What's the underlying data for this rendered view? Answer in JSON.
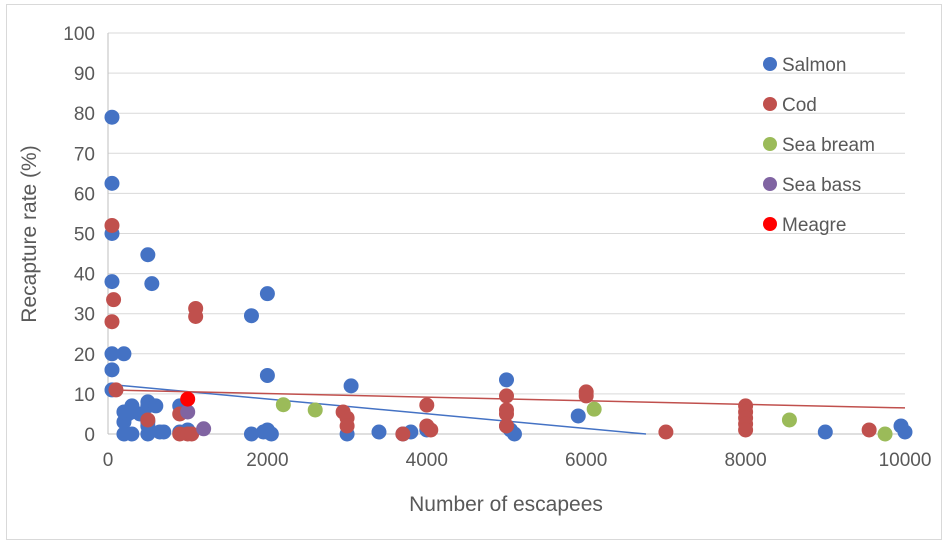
{
  "chart_data": {
    "type": "scatter",
    "xlabel": "Number of escapees",
    "ylabel": "Recapture rate (%)",
    "xlim": [
      0,
      10000
    ],
    "ylim": [
      0,
      100
    ],
    "x_ticks": [
      "0",
      "2000",
      "4000",
      "6000",
      "8000",
      "10000"
    ],
    "y_ticks": [
      "0",
      "10",
      "20",
      "30",
      "40",
      "50",
      "60",
      "70",
      "80",
      "90",
      "100"
    ],
    "grid": "horizontal",
    "legend_position": "right",
    "series": [
      {
        "name": "Salmon",
        "color": "#4472c4",
        "points": [
          [
            50,
            79
          ],
          [
            50,
            62.5
          ],
          [
            50,
            50
          ],
          [
            50,
            38
          ],
          [
            50,
            20
          ],
          [
            50,
            16
          ],
          [
            50,
            11
          ],
          [
            200,
            20
          ],
          [
            200,
            5.5
          ],
          [
            200,
            3
          ],
          [
            200,
            0
          ],
          [
            250,
            5
          ],
          [
            300,
            7
          ],
          [
            300,
            5.5
          ],
          [
            300,
            0
          ],
          [
            400,
            5
          ],
          [
            500,
            44.7
          ],
          [
            500,
            8
          ],
          [
            500,
            7
          ],
          [
            500,
            3
          ],
          [
            500,
            2
          ],
          [
            500,
            0
          ],
          [
            550,
            37.5
          ],
          [
            600,
            7
          ],
          [
            650,
            0.5
          ],
          [
            700,
            0.5
          ],
          [
            900,
            7
          ],
          [
            900,
            0.5
          ],
          [
            1000,
            1
          ],
          [
            1800,
            29.5
          ],
          [
            1800,
            0
          ],
          [
            1950,
            0.5
          ],
          [
            2000,
            35
          ],
          [
            2000,
            14.6
          ],
          [
            2000,
            1
          ],
          [
            2000,
            0.5
          ],
          [
            2050,
            0
          ],
          [
            3000,
            0
          ],
          [
            3050,
            12
          ],
          [
            3400,
            0.5
          ],
          [
            3700,
            0
          ],
          [
            3800,
            0.5
          ],
          [
            4000,
            1
          ],
          [
            5000,
            13.5
          ],
          [
            5000,
            2
          ],
          [
            5050,
            1
          ],
          [
            5100,
            0
          ],
          [
            5900,
            4.5
          ],
          [
            9000,
            0.5
          ],
          [
            9950,
            2
          ],
          [
            10000,
            0.5
          ]
        ]
      },
      {
        "name": "Cod",
        "color": "#c0504d",
        "points": [
          [
            50,
            52
          ],
          [
            50,
            28
          ],
          [
            70,
            33.5
          ],
          [
            100,
            11
          ],
          [
            500,
            3.5
          ],
          [
            900,
            5
          ],
          [
            900,
            0
          ],
          [
            1000,
            0
          ],
          [
            1050,
            0
          ],
          [
            1100,
            31.3
          ],
          [
            1100,
            29.3
          ],
          [
            2950,
            5.5
          ],
          [
            3000,
            4
          ],
          [
            3000,
            2
          ],
          [
            3700,
            0
          ],
          [
            4000,
            7.2
          ],
          [
            4000,
            2
          ],
          [
            4050,
            1
          ],
          [
            5000,
            9.5
          ],
          [
            5000,
            6
          ],
          [
            5000,
            5
          ],
          [
            5000,
            2
          ],
          [
            6000,
            10.5
          ],
          [
            6000,
            9.5
          ],
          [
            7000,
            0.5
          ],
          [
            8000,
            7
          ],
          [
            8000,
            5.5
          ],
          [
            8000,
            4
          ],
          [
            8000,
            2.5
          ],
          [
            8000,
            1
          ],
          [
            9550,
            1
          ]
        ]
      },
      {
        "name": "Sea bream",
        "color": "#9bbb59",
        "points": [
          [
            2200,
            7.3
          ],
          [
            2600,
            6
          ],
          [
            6100,
            6.2
          ],
          [
            8550,
            3.5
          ],
          [
            9750,
            0
          ]
        ]
      },
      {
        "name": "Sea bass",
        "color": "#8064a2",
        "points": [
          [
            1000,
            5.5
          ],
          [
            1200,
            1.3
          ]
        ]
      },
      {
        "name": "Meagre",
        "color": "#ff0000",
        "points": [
          [
            1000,
            8.7
          ]
        ]
      }
    ],
    "trendlines": [
      {
        "series": "Salmon",
        "color": "#4472c4",
        "from": [
          0,
          12.4
        ],
        "to": [
          6750,
          0
        ]
      },
      {
        "series": "Cod",
        "color": "#c0504d",
        "from": [
          0,
          11
        ],
        "to": [
          10000,
          6.5
        ]
      }
    ]
  }
}
